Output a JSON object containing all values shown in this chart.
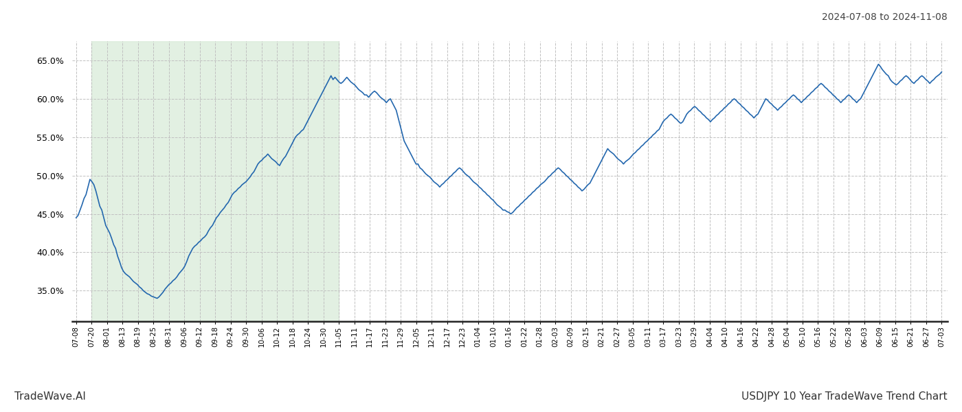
{
  "title_right": "2024-07-08 to 2024-11-08",
  "footer_left": "TradeWave.AI",
  "footer_right": "USDJPY 10 Year TradeWave Trend Chart",
  "bg_color": "#ffffff",
  "line_color": "#2367ae",
  "shaded_region_color": "#d6ead6",
  "shaded_region_alpha": 0.7,
  "ylim": [
    31.0,
    67.5
  ],
  "yticks": [
    35.0,
    40.0,
    45.0,
    50.0,
    55.0,
    60.0,
    65.0
  ],
  "grid_color": "#c0c0c0",
  "grid_style": "--",
  "x_tick_labels": [
    "07-08",
    "07-20",
    "08-01",
    "08-13",
    "08-19",
    "08-25",
    "08-31",
    "09-06",
    "09-12",
    "09-18",
    "09-24",
    "09-30",
    "10-06",
    "10-12",
    "10-18",
    "10-24",
    "10-30",
    "11-05",
    "11-11",
    "11-17",
    "11-23",
    "11-29",
    "12-05",
    "12-11",
    "12-17",
    "12-23",
    "01-04",
    "01-10",
    "01-16",
    "01-22",
    "01-28",
    "02-03",
    "02-09",
    "02-15",
    "02-21",
    "02-27",
    "03-05",
    "03-11",
    "03-17",
    "03-23",
    "03-29",
    "04-04",
    "04-10",
    "04-16",
    "04-22",
    "04-28",
    "05-04",
    "05-10",
    "05-16",
    "05-22",
    "05-28",
    "06-03",
    "06-09",
    "06-15",
    "06-21",
    "06-27",
    "07-03"
  ],
  "shaded_start_label": "07-20",
  "shaded_end_label": "11-05",
  "y_values": [
    44.5,
    44.8,
    45.5,
    46.2,
    47.0,
    47.5,
    48.5,
    49.5,
    49.2,
    48.8,
    48.0,
    47.0,
    46.0,
    45.5,
    44.5,
    43.5,
    43.0,
    42.5,
    41.8,
    41.0,
    40.5,
    39.5,
    38.8,
    38.0,
    37.5,
    37.2,
    37.0,
    36.8,
    36.5,
    36.2,
    36.0,
    35.8,
    35.5,
    35.3,
    35.0,
    34.8,
    34.6,
    34.5,
    34.3,
    34.2,
    34.1,
    34.0,
    34.2,
    34.5,
    34.8,
    35.2,
    35.5,
    35.8,
    36.0,
    36.3,
    36.5,
    36.8,
    37.2,
    37.5,
    37.8,
    38.2,
    38.8,
    39.5,
    40.0,
    40.5,
    40.8,
    41.0,
    41.3,
    41.5,
    41.8,
    42.0,
    42.3,
    42.8,
    43.2,
    43.5,
    44.0,
    44.5,
    44.8,
    45.2,
    45.5,
    45.8,
    46.2,
    46.5,
    47.0,
    47.5,
    47.8,
    48.0,
    48.3,
    48.5,
    48.8,
    49.0,
    49.2,
    49.5,
    49.8,
    50.2,
    50.5,
    51.0,
    51.5,
    51.8,
    52.0,
    52.3,
    52.5,
    52.8,
    52.5,
    52.2,
    52.0,
    51.8,
    51.5,
    51.3,
    51.8,
    52.2,
    52.5,
    53.0,
    53.5,
    54.0,
    54.5,
    55.0,
    55.3,
    55.5,
    55.8,
    56.0,
    56.5,
    57.0,
    57.5,
    58.0,
    58.5,
    59.0,
    59.5,
    60.0,
    60.5,
    61.0,
    61.5,
    62.0,
    62.5,
    63.0,
    62.5,
    62.8,
    62.5,
    62.2,
    62.0,
    62.2,
    62.5,
    62.8,
    62.5,
    62.2,
    62.0,
    61.8,
    61.5,
    61.2,
    61.0,
    60.8,
    60.5,
    60.5,
    60.2,
    60.5,
    60.8,
    61.0,
    60.8,
    60.5,
    60.2,
    60.0,
    59.8,
    59.5,
    59.8,
    60.0,
    59.5,
    59.0,
    58.5,
    57.5,
    56.5,
    55.5,
    54.5,
    54.0,
    53.5,
    53.0,
    52.5,
    52.0,
    51.5,
    51.5,
    51.0,
    50.8,
    50.5,
    50.2,
    50.0,
    49.8,
    49.5,
    49.2,
    49.0,
    48.8,
    48.5,
    48.8,
    49.0,
    49.3,
    49.5,
    49.8,
    50.0,
    50.3,
    50.5,
    50.8,
    51.0,
    50.8,
    50.5,
    50.2,
    50.0,
    49.8,
    49.5,
    49.2,
    49.0,
    48.8,
    48.5,
    48.3,
    48.0,
    47.8,
    47.5,
    47.3,
    47.0,
    46.8,
    46.5,
    46.2,
    46.0,
    45.8,
    45.5,
    45.5,
    45.3,
    45.2,
    45.0,
    45.2,
    45.5,
    45.8,
    46.0,
    46.3,
    46.5,
    46.8,
    47.0,
    47.3,
    47.5,
    47.8,
    48.0,
    48.3,
    48.5,
    48.8,
    49.0,
    49.2,
    49.5,
    49.8,
    50.0,
    50.3,
    50.5,
    50.8,
    51.0,
    50.8,
    50.5,
    50.3,
    50.0,
    49.8,
    49.5,
    49.3,
    49.0,
    48.8,
    48.5,
    48.3,
    48.0,
    48.2,
    48.5,
    48.8,
    49.0,
    49.5,
    50.0,
    50.5,
    51.0,
    51.5,
    52.0,
    52.5,
    53.0,
    53.5,
    53.2,
    53.0,
    52.8,
    52.5,
    52.2,
    52.0,
    51.8,
    51.5,
    51.8,
    52.0,
    52.2,
    52.5,
    52.8,
    53.0,
    53.3,
    53.5,
    53.8,
    54.0,
    54.3,
    54.5,
    54.8,
    55.0,
    55.3,
    55.5,
    55.8,
    56.0,
    56.5,
    57.0,
    57.3,
    57.5,
    57.8,
    58.0,
    57.8,
    57.5,
    57.3,
    57.0,
    56.8,
    57.0,
    57.5,
    58.0,
    58.3,
    58.5,
    58.8,
    59.0,
    58.8,
    58.5,
    58.3,
    58.0,
    57.8,
    57.5,
    57.3,
    57.0,
    57.3,
    57.5,
    57.8,
    58.0,
    58.3,
    58.5,
    58.8,
    59.0,
    59.3,
    59.5,
    59.8,
    60.0,
    59.8,
    59.5,
    59.3,
    59.0,
    58.8,
    58.5,
    58.3,
    58.0,
    57.8,
    57.5,
    57.8,
    58.0,
    58.5,
    59.0,
    59.5,
    60.0,
    59.8,
    59.5,
    59.3,
    59.0,
    58.8,
    58.5,
    58.8,
    59.0,
    59.3,
    59.5,
    59.8,
    60.0,
    60.3,
    60.5,
    60.3,
    60.0,
    59.8,
    59.5,
    59.8,
    60.0,
    60.3,
    60.5,
    60.8,
    61.0,
    61.3,
    61.5,
    61.8,
    62.0,
    61.8,
    61.5,
    61.3,
    61.0,
    60.8,
    60.5,
    60.3,
    60.0,
    59.8,
    59.5,
    59.8,
    60.0,
    60.3,
    60.5,
    60.3,
    60.0,
    59.8,
    59.5,
    59.8,
    60.0,
    60.5,
    61.0,
    61.5,
    62.0,
    62.5,
    63.0,
    63.5,
    64.0,
    64.5,
    64.2,
    63.8,
    63.5,
    63.2,
    63.0,
    62.5,
    62.2,
    62.0,
    61.8,
    62.0,
    62.3,
    62.5,
    62.8,
    63.0,
    62.8,
    62.5,
    62.2,
    62.0,
    62.3,
    62.5,
    62.8,
    63.0,
    62.8,
    62.5,
    62.3,
    62.0,
    62.3,
    62.5,
    62.8,
    63.0,
    63.2,
    63.5
  ]
}
